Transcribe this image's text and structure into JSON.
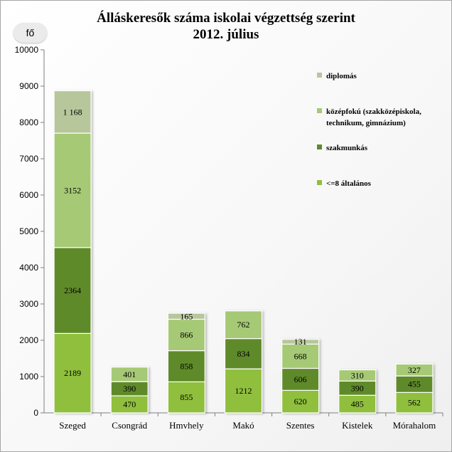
{
  "chart_data": {
    "type": "bar",
    "stacked": true,
    "title": "Álláskeresők száma iskolai végzettség szerint",
    "subtitle": "2012. július",
    "unit_label": "fő",
    "ylim": [
      0,
      10000
    ],
    "yticks": [
      "0",
      "1000",
      "2000",
      "3000",
      "4000",
      "5000",
      "6000",
      "7000",
      "8000",
      "9000",
      "10000"
    ],
    "categories": [
      "Szeged",
      "Csongrád",
      "Hmvhely",
      "Makó",
      "Szentes",
      "Kistelek",
      "Mórahalom"
    ],
    "series": [
      {
        "name": "<=8 általános",
        "color": "#8fbf3c",
        "values": [
          2189,
          470,
          855,
          1212,
          620,
          485,
          562
        ],
        "labels": [
          "2189",
          "470",
          "855",
          "1212",
          "620",
          "485",
          "562"
        ]
      },
      {
        "name": "szakmunkás",
        "color": "#5f8a2a",
        "values": [
          2364,
          390,
          858,
          834,
          606,
          390,
          455
        ],
        "labels": [
          "2364",
          "390",
          "858",
          "834",
          "606",
          "390",
          "455"
        ]
      },
      {
        "name": "középfokú (szakközépiskola, technikum, gimnázium)",
        "color": "#a6c974",
        "values": [
          3152,
          401,
          866,
          762,
          668,
          310,
          327
        ],
        "labels": [
          "3152",
          "401",
          "866",
          "762",
          "668",
          "310",
          "327"
        ]
      },
      {
        "name": "diplomás",
        "color": "#b7c79b",
        "values": [
          1168,
          0,
          165,
          0,
          131,
          0,
          0
        ],
        "labels": [
          "1 168",
          "",
          "165",
          "",
          "131",
          "",
          ""
        ]
      }
    ],
    "legend": {
      "placement": "top-right",
      "items": [
        {
          "line1": "diplomás",
          "line2": ""
        },
        {
          "line1": "középfokú (szakközépiskola,",
          "line2": "technikum, gimnázium)"
        },
        {
          "line1": "szakmunkás",
          "line2": ""
        },
        {
          "line1": "<=8 általános",
          "line2": ""
        }
      ]
    },
    "grid": false
  }
}
